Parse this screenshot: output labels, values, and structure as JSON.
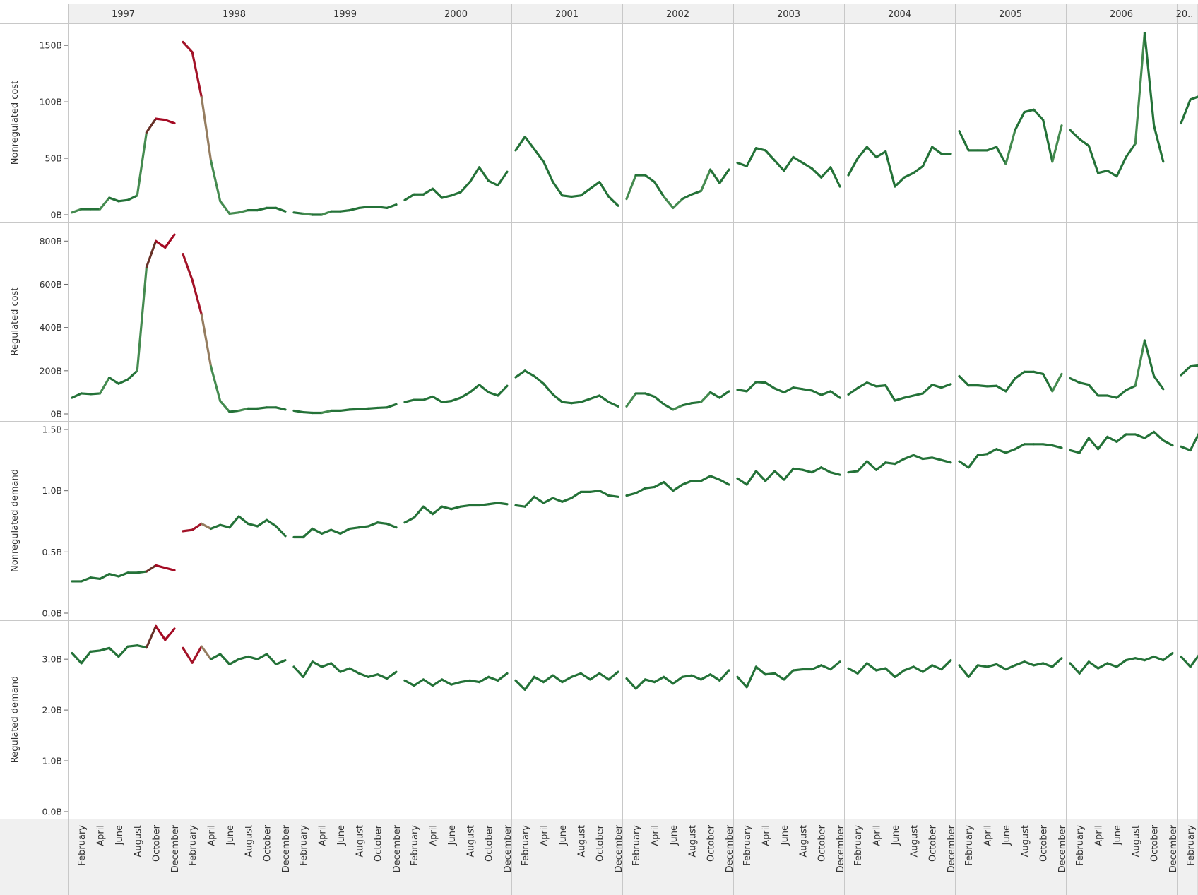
{
  "chart_data": {
    "type": "line",
    "columns": [
      "1997",
      "1998",
      "1999",
      "2000",
      "2001",
      "2002",
      "2003",
      "2004",
      "2005",
      "2006",
      "20.."
    ],
    "rows": [
      "Nonregulated cost",
      "Regulated cost",
      "Nonregulated demand",
      "Regulated demand"
    ],
    "month_tick_labels": [
      "February",
      "April",
      "June",
      "August",
      "October",
      "December"
    ],
    "y_ticks": [
      [
        "0B",
        "50B",
        "100B",
        "150B"
      ],
      [
        "0B",
        "200B",
        "400B",
        "600B",
        "800B"
      ],
      [
        "0.0B",
        "0.5B",
        "1.0B",
        "1.5B"
      ],
      [
        "0.0B",
        "1.0B",
        "2.0B",
        "3.0B"
      ]
    ],
    "y_range": [
      [
        0,
        162
      ],
      [
        0,
        850
      ],
      [
        0,
        1.5
      ],
      [
        0,
        3.6
      ]
    ],
    "color_scale": {
      "low": "#1e6e34",
      "mid": "#8cc084",
      "high": "#a5001e"
    },
    "series": {
      "Nonregulated cost": [
        [
          2,
          5,
          5,
          5,
          15,
          12,
          13,
          17,
          73,
          85,
          84,
          81
        ],
        [
          153,
          144,
          104,
          48,
          12,
          1,
          2,
          4,
          4,
          6,
          6,
          3
        ],
        [
          2,
          1,
          0,
          0,
          3,
          3,
          4,
          6,
          7,
          7,
          6,
          9
        ],
        [
          13,
          18,
          18,
          23,
          15,
          17,
          20,
          29,
          42,
          30,
          26,
          38
        ],
        [
          57,
          69,
          58,
          47,
          29,
          17,
          16,
          17,
          23,
          29,
          16,
          8
        ],
        [
          14,
          35,
          35,
          29,
          16,
          6,
          14,
          18,
          21,
          40,
          28,
          40
        ],
        [
          46,
          43,
          59,
          57,
          48,
          39,
          51,
          46,
          41,
          33,
          42,
          25
        ],
        [
          35,
          50,
          60,
          51,
          56,
          25,
          33,
          37,
          43,
          60,
          54,
          54
        ],
        [
          74,
          57,
          57,
          57,
          60,
          45,
          75,
          91,
          93,
          84,
          47,
          79
        ],
        [
          75,
          67,
          61,
          37,
          39,
          34,
          51,
          63,
          161,
          79,
          47
        ],
        [
          81,
          102,
          105
        ]
      ],
      "Regulated cost": [
        [
          75,
          95,
          92,
          95,
          168,
          140,
          160,
          200,
          680,
          800,
          770,
          830
        ],
        [
          740,
          620,
          460,
          220,
          60,
          10,
          15,
          25,
          25,
          30,
          30,
          20
        ],
        [
          15,
          8,
          5,
          5,
          15,
          15,
          20,
          22,
          25,
          28,
          30,
          45
        ],
        [
          55,
          65,
          65,
          80,
          55,
          60,
          75,
          100,
          135,
          100,
          85,
          130
        ],
        [
          170,
          200,
          175,
          140,
          90,
          55,
          50,
          55,
          70,
          85,
          55,
          35
        ],
        [
          35,
          95,
          95,
          80,
          45,
          20,
          40,
          50,
          55,
          100,
          75,
          105
        ],
        [
          112,
          105,
          148,
          145,
          118,
          100,
          122,
          115,
          108,
          88,
          105,
          75
        ],
        [
          90,
          120,
          145,
          128,
          132,
          62,
          75,
          85,
          95,
          135,
          122,
          138
        ],
        [
          175,
          132,
          132,
          128,
          130,
          105,
          165,
          195,
          195,
          185,
          105,
          185
        ],
        [
          165,
          145,
          135,
          85,
          85,
          75,
          110,
          130,
          340,
          175,
          115
        ],
        [
          180,
          220,
          225
        ]
      ],
      "Nonregulated demand": [
        [
          0.26,
          0.26,
          0.29,
          0.28,
          0.32,
          0.3,
          0.33,
          0.33,
          0.34,
          0.39,
          0.37,
          0.35
        ],
        [
          0.67,
          0.68,
          0.73,
          0.69,
          0.72,
          0.7,
          0.79,
          0.73,
          0.71,
          0.76,
          0.71,
          0.63
        ],
        [
          0.62,
          0.62,
          0.69,
          0.65,
          0.68,
          0.65,
          0.69,
          0.7,
          0.71,
          0.74,
          0.73,
          0.7
        ],
        [
          0.74,
          0.78,
          0.87,
          0.81,
          0.87,
          0.85,
          0.87,
          0.88,
          0.88,
          0.89,
          0.9,
          0.89
        ],
        [
          0.88,
          0.87,
          0.95,
          0.9,
          0.94,
          0.91,
          0.94,
          0.99,
          0.99,
          1.0,
          0.96,
          0.95
        ],
        [
          0.96,
          0.98,
          1.02,
          1.03,
          1.07,
          1.0,
          1.05,
          1.08,
          1.08,
          1.12,
          1.09,
          1.05
        ],
        [
          1.1,
          1.05,
          1.16,
          1.08,
          1.16,
          1.09,
          1.18,
          1.17,
          1.15,
          1.19,
          1.15,
          1.13
        ],
        [
          1.15,
          1.16,
          1.24,
          1.17,
          1.23,
          1.22,
          1.26,
          1.29,
          1.26,
          1.27,
          1.25,
          1.23
        ],
        [
          1.24,
          1.19,
          1.29,
          1.3,
          1.34,
          1.31,
          1.34,
          1.38,
          1.38,
          1.38,
          1.37,
          1.35
        ],
        [
          1.33,
          1.31,
          1.43,
          1.34,
          1.44,
          1.4,
          1.46,
          1.46,
          1.43,
          1.48,
          1.41,
          1.37
        ],
        [
          1.36,
          1.33,
          1.48
        ]
      ],
      "Regulated demand": [
        [
          3.12,
          2.92,
          3.15,
          3.17,
          3.22,
          3.05,
          3.25,
          3.27,
          3.23,
          3.65,
          3.38,
          3.6
        ],
        [
          3.22,
          2.93,
          3.25,
          3.0,
          3.1,
          2.9,
          3.0,
          3.05,
          3.0,
          3.1,
          2.9,
          2.98
        ],
        [
          2.85,
          2.65,
          2.95,
          2.85,
          2.92,
          2.75,
          2.82,
          2.72,
          2.65,
          2.7,
          2.62,
          2.75
        ],
        [
          2.58,
          2.48,
          2.6,
          2.48,
          2.6,
          2.5,
          2.55,
          2.58,
          2.55,
          2.65,
          2.58,
          2.72
        ],
        [
          2.58,
          2.4,
          2.65,
          2.55,
          2.68,
          2.55,
          2.65,
          2.72,
          2.6,
          2.72,
          2.6,
          2.75
        ],
        [
          2.62,
          2.42,
          2.6,
          2.55,
          2.65,
          2.52,
          2.65,
          2.68,
          2.6,
          2.7,
          2.58,
          2.78
        ],
        [
          2.65,
          2.45,
          2.85,
          2.7,
          2.72,
          2.6,
          2.78,
          2.8,
          2.8,
          2.88,
          2.8,
          2.95
        ],
        [
          2.82,
          2.72,
          2.92,
          2.78,
          2.82,
          2.65,
          2.78,
          2.85,
          2.75,
          2.88,
          2.8,
          2.98
        ],
        [
          2.88,
          2.65,
          2.88,
          2.85,
          2.9,
          2.8,
          2.88,
          2.95,
          2.88,
          2.92,
          2.85,
          3.02
        ],
        [
          2.92,
          2.72,
          2.95,
          2.82,
          2.92,
          2.85,
          2.98,
          3.02,
          2.98,
          3.05,
          2.98,
          3.12
        ],
        [
          3.05,
          2.85,
          3.1
        ]
      ]
    },
    "highlight": {
      "1997": {
        "red_from": 9
      },
      "1998": {
        "red_until": 2
      }
    }
  }
}
